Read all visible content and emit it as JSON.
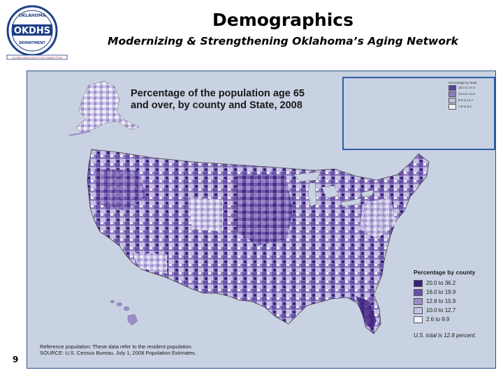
{
  "header": {
    "logo_top": "OKLAHOMA",
    "logo_main": "OKDHS",
    "logo_bottom": "DEPARTMENT",
    "logo_tagline": "GLOBAL ADVOCATES FOR CONNECTION",
    "title": "Demographics",
    "subtitle": "Modernizing & Strengthening Oklahoma’s Aging Network"
  },
  "page_number": "9",
  "map": {
    "title_line1": "Percentage of the population age 65",
    "title_line2": "and over, by county and State, 2008",
    "legend_county": {
      "title": "Percentage by county",
      "items": [
        {
          "label": "20.0 to 36.2",
          "color": "#3c1f7d"
        },
        {
          "label": "16.0 to 19.9",
          "color": "#6a50a8"
        },
        {
          "label": "12.8 to 15.9",
          "color": "#9a8ccb"
        },
        {
          "label": "10.0 to 12.7",
          "color": "#c6c0e3"
        },
        {
          "label": "2.6 to 9.9",
          "color": "#f3f1fa"
        }
      ]
    },
    "legend_state": {
      "title": "Percentage by State",
      "items": [
        {
          "label": "15.0 to 17.4",
          "color": "#5b3f9c"
        },
        {
          "label": "13.0 to 14.9",
          "color": "#8d7ec2"
        },
        {
          "label": "9.5 to 12.7",
          "color": "#c2bbe0"
        },
        {
          "label": "7.9 to 9.4",
          "color": "#f3f1fa"
        }
      ]
    },
    "us_total": "U.S. total is 12.8 percent.",
    "reference_note": "Reference population:  These data refer to the resident population.",
    "source": "SOURCE:  U.S. Census Bureau, July 1, 2008 Population Estimates."
  }
}
